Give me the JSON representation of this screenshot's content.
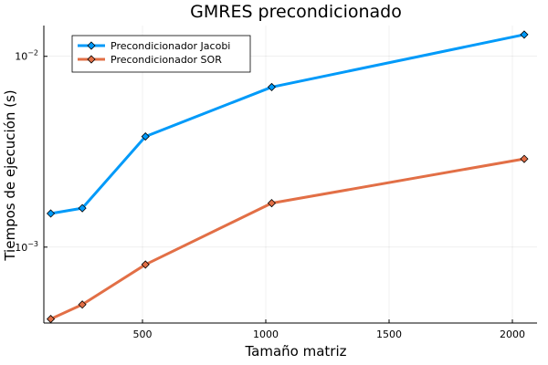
{
  "chart_data": {
    "type": "line",
    "title": "GMRES precondicionado",
    "xlabel": "Tamaño matriz",
    "ylabel": "Tiempos de ejecución (s)",
    "x_scale": "linear",
    "y_scale": "log",
    "xlim": [
      100,
      2100
    ],
    "ylim": [
      0.0004,
      0.0145
    ],
    "x_ticks": [
      500,
      1000,
      1500,
      2000
    ],
    "x_tick_labels": [
      "500",
      "1000",
      "1500",
      "2000"
    ],
    "y_ticks": [
      0.001,
      0.01
    ],
    "y_tick_labels": [
      {
        "base": "10",
        "exp": "−3"
      },
      {
        "base": "10",
        "exp": "−2"
      }
    ],
    "grid": true,
    "legend_position": "top-left",
    "x": [
      128,
      256,
      512,
      1024,
      2048
    ],
    "series": [
      {
        "name": "Precondicionador Jacobi",
        "color": "#009af9",
        "marker": "diamond",
        "values": [
          0.0015,
          0.0016,
          0.0038,
          0.0069,
          0.013
        ]
      },
      {
        "name": "Precondicionador SOR",
        "color": "#e26f46",
        "marker": "diamond",
        "values": [
          0.00042,
          0.0005,
          0.00081,
          0.0017,
          0.0029
        ]
      }
    ]
  }
}
